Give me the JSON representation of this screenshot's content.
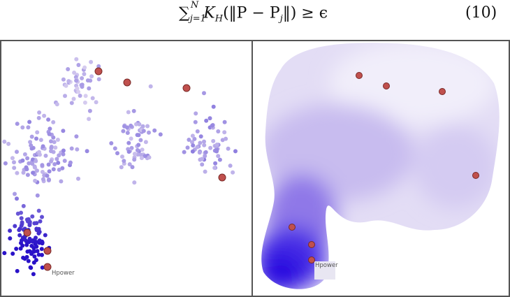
{
  "equation": {
    "sum": "∑",
    "lower": "j=1",
    "upper": "N",
    "kernel": "K",
    "kernel_sub": "H",
    "argument": "(‖P − P",
    "arg_sub": "j",
    "argument_end": "‖) ≥ ϵ",
    "number": "(10)"
  },
  "left_panel": {
    "label": "Hpower",
    "highlight_color": "#c0504d",
    "point_color_light": "#d9cff0",
    "point_color_dark": "#2a12c8"
  },
  "right_panel": {
    "label": "Hpower",
    "highlight_color": "#c0504d",
    "density_color_light": "#ece8f7",
    "density_color_dark": "#2a0fe0"
  }
}
